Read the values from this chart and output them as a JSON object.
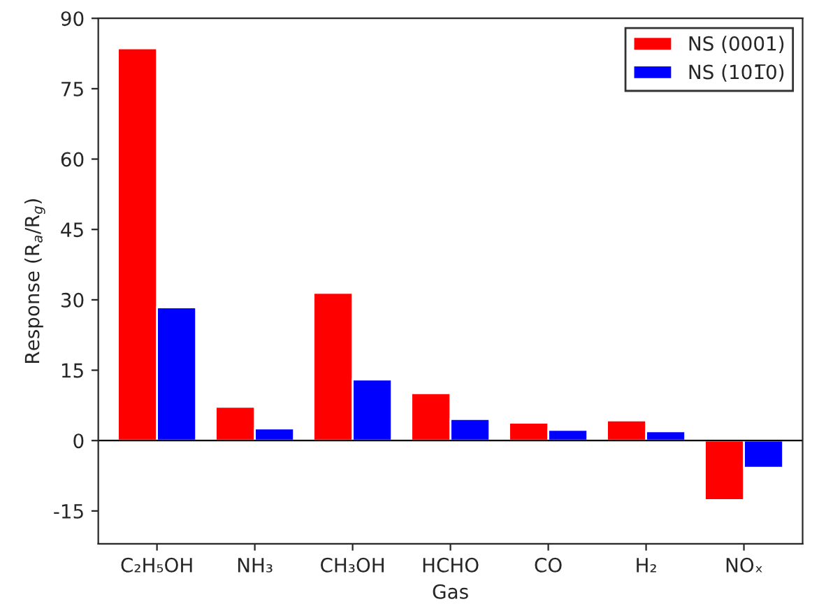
{
  "chart_data": {
    "type": "bar",
    "xlabel": "Gas",
    "ylabel": "Response (R$_{a}$/R$_{g}$)",
    "categories": [
      "C₂H₅OH",
      "NH₃",
      "CH₃OH",
      "HCHO",
      "CO",
      "H₂",
      "NOₓ"
    ],
    "series": [
      {
        "name": "NS (0001)",
        "color": "#ff0000",
        "values": [
          83.6,
          7.2,
          31.5,
          10.1,
          3.8,
          4.3,
          -12.7
        ]
      },
      {
        "name": "NS (101̅0)",
        "color": "#0000ff",
        "values": [
          28.4,
          2.6,
          13,
          4.6,
          2.3,
          2.0,
          -5.8
        ]
      }
    ],
    "ylim": [
      -22,
      90
    ],
    "yticks": [
      -15,
      0,
      15,
      30,
      45,
      60,
      75,
      90
    ],
    "grid": false,
    "ref_lines": [
      {
        "axis": "y",
        "value": 0,
        "color": "#000000"
      }
    ],
    "legend": "top right"
  }
}
